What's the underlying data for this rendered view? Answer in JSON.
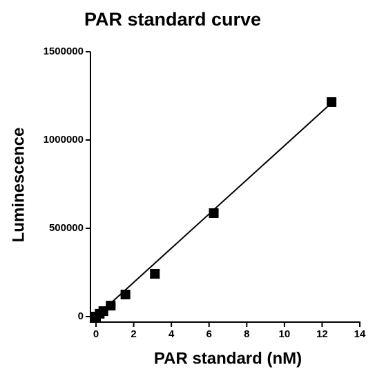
{
  "chart_data": {
    "type": "scatter",
    "title": "PAR standard curve",
    "x_label": "PAR standard (nM)",
    "y_label": "Luminescence",
    "x": [
      0,
      0.1953125,
      0.390625,
      0.78125,
      1.5625,
      3.125,
      6.25,
      12.5
    ],
    "series": [
      {
        "color": "#000000",
        "values": [
          0,
          16000,
          31000,
          62000,
          125000,
          242000,
          586000,
          1215000
        ],
        "errors": [
          2000,
          3000,
          4000,
          5000,
          8000,
          22000,
          12000,
          10000
        ]
      }
    ],
    "fit": {
      "color": "#000000",
      "x": [
        0,
        12.5
      ],
      "values": [
        0,
        1210000
      ]
    },
    "xlim": [
      0,
      14
    ],
    "xticks": [
      0,
      2,
      4,
      6,
      8,
      10,
      12,
      14
    ],
    "ylim": [
      0,
      1500000
    ],
    "yticks": [
      0,
      500000,
      1000000,
      1500000
    ]
  }
}
